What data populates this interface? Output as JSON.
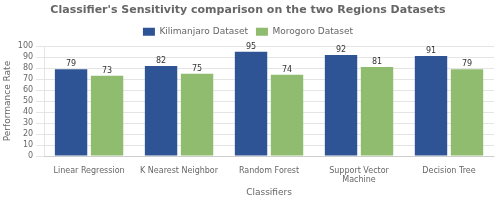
{
  "chart_data": {
    "type": "bar",
    "title": "Classifier's Sensitivity comparison on the two Regions Datasets",
    "xlabel": "Classifiers",
    "ylabel": "Performance Rate",
    "categories": [
      "Linear Regression",
      "K Nearest Neighbor",
      "Random Forest",
      "Support Vector\nMachine",
      "Decision Tree"
    ],
    "series": [
      {
        "name": "Kilimanjaro Dataset",
        "color": "#2f5496",
        "values": [
          79,
          82,
          95,
          92,
          91
        ]
      },
      {
        "name": "Morogoro Dataset",
        "color": "#8fbc6e",
        "values": [
          73,
          75,
          74,
          81,
          79
        ]
      }
    ],
    "ylim": [
      0,
      100
    ],
    "yticks": [
      0,
      10,
      20,
      30,
      40,
      50,
      60,
      70,
      80,
      90,
      100
    ],
    "grid": true,
    "legend": "top",
    "data_labels": true
  }
}
